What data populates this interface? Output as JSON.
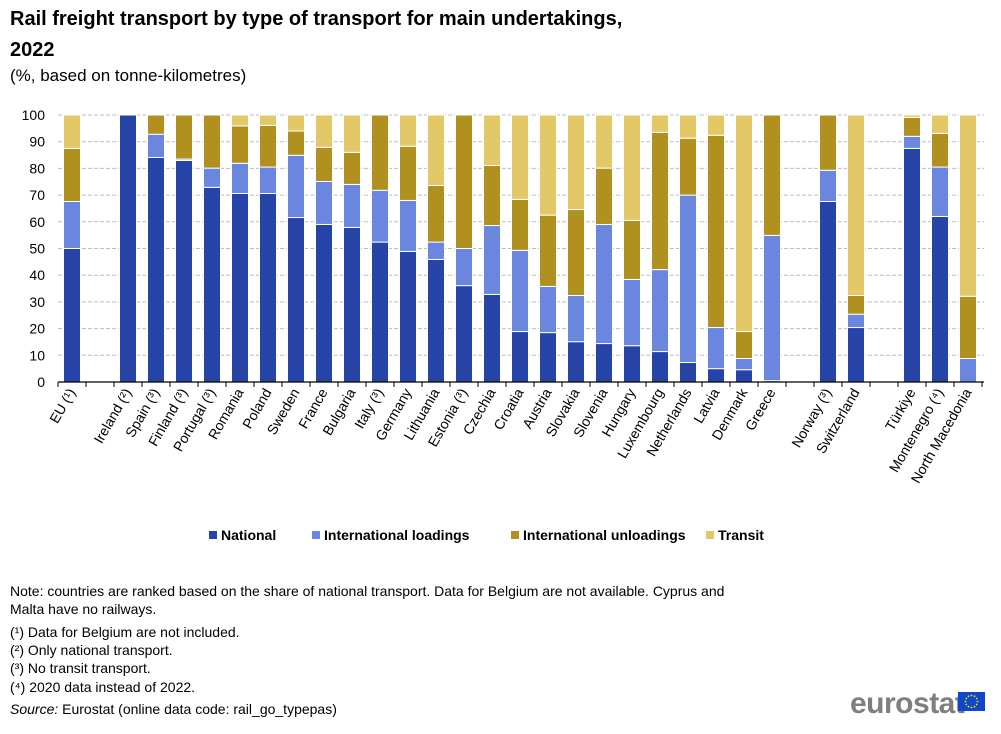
{
  "chart_data": {
    "type": "bar",
    "stacked": true,
    "title": "Rail freight transport by type of transport for main undertakings, 2022",
    "title_lines": [
      "Rail freight transport by type of transport for main undertakings,",
      "2022"
    ],
    "subtitle": "(%, based on tonne-kilometres)",
    "xlabel": "",
    "ylabel": "",
    "ylim": [
      0,
      100
    ],
    "yticks": [
      "0",
      "10",
      "20",
      "30",
      "40",
      "50",
      "60",
      "70",
      "80",
      "90",
      "100"
    ],
    "grid": true,
    "legend_position": "bottom",
    "categories": [
      "EU (¹)",
      "Ireland (²)",
      "Spain (³)",
      "Finland (³)",
      "Portugal (³)",
      "Romania",
      "Poland",
      "Sweden",
      "France",
      "Bulgaria",
      "Italy (³)",
      "Germany",
      "Lithuania",
      "Estonia (³)",
      "Czechia",
      "Croatia",
      "Austria",
      "Slovakia",
      "Slovenia",
      "Hungary",
      "Luxembourg",
      "Netherlands",
      "Latvia",
      "Denmark",
      "Greece",
      "Norway (³)",
      "Switzerland",
      "Türkiye",
      "Montenegro (⁴)",
      "North Macedonia"
    ],
    "series": [
      {
        "name": "National",
        "color": "#2644A7",
        "values": [
          50.0,
          100,
          84.1,
          83.0,
          72.9,
          70.6,
          70.6,
          61.6,
          59.0,
          57.9,
          52.4,
          48.9,
          45.9,
          36.1,
          32.8,
          18.9,
          18.5,
          15.1,
          14.4,
          13.6,
          11.4,
          7.3,
          5.0,
          4.6,
          0.5,
          67.6,
          20.4,
          87.5,
          62.0,
          0
        ]
      },
      {
        "name": "International loadings",
        "color": "#6B86DF",
        "values": [
          17.6,
          0,
          8.7,
          0.5,
          7.2,
          11.3,
          9.9,
          23.3,
          16.1,
          16.1,
          19.4,
          19.1,
          6.5,
          13.9,
          25.8,
          30.4,
          17.3,
          17.3,
          44.6,
          24.8,
          30.7,
          62.7,
          15.4,
          4.2,
          54.4,
          11.7,
          5.0,
          4.5,
          18.5,
          8.8
        ]
      },
      {
        "name": "International unloadings",
        "color": "#B09120",
        "values": [
          19.9,
          0,
          7.2,
          16.5,
          19.9,
          14.0,
          15.6,
          9.1,
          12.8,
          12.0,
          28.2,
          20.3,
          21.2,
          50.0,
          22.5,
          19.1,
          26.7,
          32.2,
          21.1,
          22.1,
          51.4,
          21.3,
          72.0,
          10.1,
          45.1,
          20.7,
          7.0,
          7.1,
          12.6,
          23.3
        ]
      },
      {
        "name": "Transit",
        "color": "#E2C866",
        "values": [
          12.5,
          0,
          0,
          0,
          0,
          4.1,
          3.9,
          6.0,
          12.1,
          14.0,
          0,
          11.7,
          26.4,
          0,
          18.9,
          31.6,
          37.5,
          35.4,
          19.9,
          39.5,
          6.5,
          8.7,
          7.6,
          81.1,
          0,
          0,
          67.6,
          0.9,
          6.9,
          67.9
        ]
      }
    ]
  },
  "notes": {
    "note_lines": [
      "Note: countries are ranked based on the share of national transport. Data for Belgium are not available. Cyprus and",
      "Malta have no railways."
    ],
    "footnotes": [
      "(¹) Data for Belgium are not included.",
      "(²) Only  national transport.",
      "(³) No transit transport.",
      "(⁴) 2020 data instead of 2022."
    ],
    "source_label": "Source:",
    "source_text": " Eurostat (online data code: rail_go_typepas)"
  },
  "logo": {
    "text": "eurostat",
    "icon": "eu-flag-icon"
  }
}
